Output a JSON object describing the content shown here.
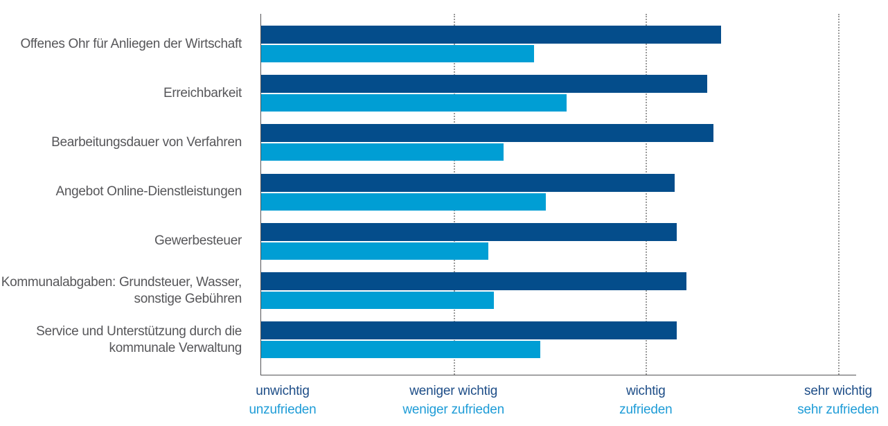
{
  "chart_data": {
    "type": "bar",
    "orientation": "horizontal",
    "title": "",
    "categories": [
      "Offenes Ohr für Anliegen der Wirtschaft",
      "Erreichbarkeit",
      "Bearbeitungsdauer von Verfahren",
      "Angebot Online-Dienstleistungen",
      "Gewerbesteuer",
      "Kommunalabgaben: Grundsteuer, Wasser,\nsonstige Gebühren",
      "Service und Unterstützung durch die\nkommunale Verwaltung"
    ],
    "series": [
      {
        "name": "wichtig (Wichtigkeit)",
        "color": "#044d8b",
        "values": [
          3.39,
          3.32,
          3.35,
          3.15,
          3.16,
          3.21,
          3.16
        ]
      },
      {
        "name": "zufrieden (Zufriedenheit)",
        "color": "#009ed4",
        "values": [
          2.42,
          2.59,
          2.26,
          2.48,
          2.18,
          2.21,
          2.45
        ]
      }
    ],
    "x_axis": {
      "min": 1,
      "max": 4,
      "grid": "dotted",
      "ticks": [
        {
          "value": 1,
          "line1": "unwichtig",
          "line2": "unzufrieden"
        },
        {
          "value": 2,
          "line1": "weniger wichtig",
          "line2": "weniger zufrieden"
        },
        {
          "value": 3,
          "line1": "wichtig",
          "line2": "zufrieden"
        },
        {
          "value": 4,
          "line1": "sehr wichtig",
          "line2": "sehr zufrieden"
        }
      ]
    },
    "legend": "none"
  },
  "colors": {
    "importance_bar": "#044d8b",
    "satisfaction_bar": "#009ed4",
    "tick_label_dark": "#1d4d87",
    "tick_label_light": "#1e9cd7",
    "category_label": "#565659",
    "axis_line": "#515154",
    "gridline": "#9a9a9a"
  }
}
